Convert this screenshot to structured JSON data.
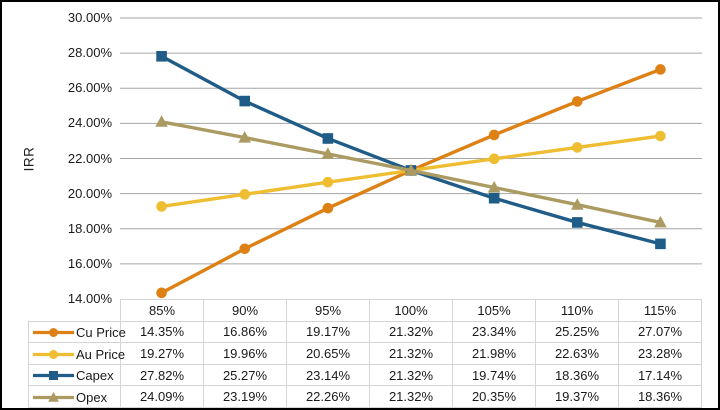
{
  "chart_data": {
    "type": "line",
    "title": "",
    "ylabel": "IRR",
    "xlabel": "",
    "categories": [
      "85%",
      "90%",
      "95%",
      "100%",
      "105%",
      "110%",
      "115%"
    ],
    "y_axis": {
      "min": 14,
      "max": 30,
      "step": 2,
      "tick_labels": [
        "30.00%",
        "28.00%",
        "26.00%",
        "24.00%",
        "22.00%",
        "20.00%",
        "18.00%",
        "16.00%",
        "14.00%"
      ]
    },
    "grid": "horizontal-only",
    "gridline_color": "#A6A6A6",
    "legend_position": "left-of-data-table",
    "series": [
      {
        "name": "Cu Price",
        "marker": "circle",
        "color": "#DE8114",
        "values": [
          14.35,
          16.86,
          19.17,
          21.32,
          23.34,
          25.25,
          27.07
        ]
      },
      {
        "name": "Au Price",
        "marker": "circle",
        "color": "#EEBD31",
        "values": [
          19.27,
          19.96,
          20.65,
          21.32,
          21.98,
          22.63,
          23.28
        ]
      },
      {
        "name": "Capex",
        "marker": "square",
        "color": "#1F5C87",
        "values": [
          27.82,
          25.27,
          23.14,
          21.32,
          19.74,
          18.36,
          17.14
        ]
      },
      {
        "name": "Opex",
        "marker": "triangle",
        "color": "#AB9B62",
        "values": [
          24.09,
          23.19,
          22.26,
          21.32,
          20.35,
          19.37,
          18.36
        ]
      }
    ]
  },
  "table": {
    "border_color": "#D4D4D4",
    "column_headers": [
      "85%",
      "90%",
      "95%",
      "100%",
      "105%",
      "110%",
      "115%"
    ],
    "rows": [
      {
        "label": "Cu Price",
        "values": [
          "14.35%",
          "16.86%",
          "19.17%",
          "21.32%",
          "23.34%",
          "25.25%",
          "27.07%"
        ]
      },
      {
        "label": "Au Price",
        "values": [
          "19.27%",
          "19.96%",
          "20.65%",
          "21.32%",
          "21.98%",
          "22.63%",
          "23.28%"
        ]
      },
      {
        "label": "Capex",
        "values": [
          "27.82%",
          "25.27%",
          "23.14%",
          "21.32%",
          "19.74%",
          "18.36%",
          "17.14%"
        ]
      },
      {
        "label": "Opex",
        "values": [
          "24.09%",
          "23.19%",
          "22.26%",
          "21.32%",
          "20.35%",
          "19.37%",
          "18.36%"
        ]
      }
    ]
  }
}
